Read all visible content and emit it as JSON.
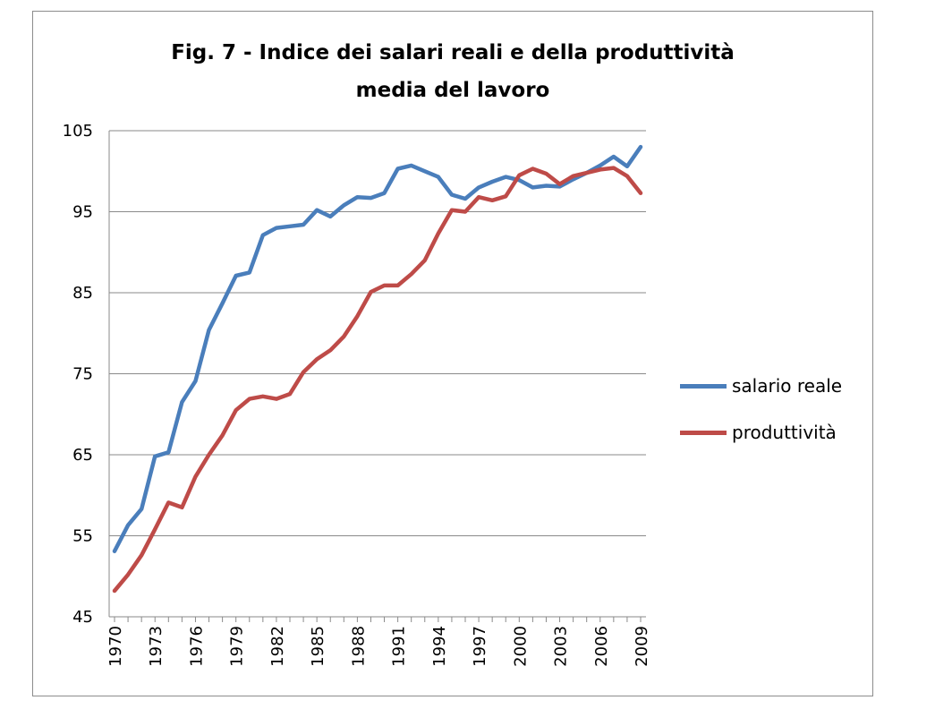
{
  "chart_data": {
    "type": "line",
    "title_lines": [
      "Fig. 7 - Indice dei salari reali e della produttività",
      "media del lavoro"
    ],
    "xlabel": "",
    "ylabel": "",
    "ylim": [
      45,
      105
    ],
    "yticks": [
      45,
      55,
      65,
      75,
      85,
      95,
      105
    ],
    "x": [
      1970,
      1971,
      1972,
      1973,
      1974,
      1975,
      1976,
      1977,
      1978,
      1979,
      1980,
      1981,
      1982,
      1983,
      1984,
      1985,
      1986,
      1987,
      1988,
      1989,
      1990,
      1991,
      1992,
      1993,
      1994,
      1995,
      1996,
      1997,
      1998,
      1999,
      2000,
      2001,
      2002,
      2003,
      2004,
      2005,
      2006,
      2007,
      2008,
      2009
    ],
    "xtick_labels": [
      "1970",
      "1973",
      "1976",
      "1979",
      "1982",
      "1985",
      "1988",
      "1991",
      "1994",
      "1997",
      "2000",
      "2003",
      "2006",
      "2009"
    ],
    "grid": "horizontal",
    "legend_position": "right",
    "series": [
      {
        "name": "salario reale",
        "color": "#4a7ebb",
        "values": [
          53.1,
          56.3,
          58.3,
          64.8,
          65.3,
          71.5,
          74.1,
          80.4,
          83.7,
          87.1,
          87.5,
          92.1,
          93.0,
          93.2,
          93.4,
          95.2,
          94.4,
          95.8,
          96.8,
          96.7,
          97.3,
          100.3,
          100.7,
          100.0,
          99.3,
          97.1,
          96.6,
          98.0,
          98.7,
          99.3,
          98.9,
          98.0,
          98.2,
          98.1,
          99.0,
          99.8,
          100.7,
          101.8,
          100.6,
          103.0
        ]
      },
      {
        "name": "produttività",
        "color": "#be4b48",
        "values": [
          48.2,
          50.2,
          52.6,
          55.8,
          59.1,
          58.5,
          62.3,
          65.0,
          67.4,
          70.5,
          71.9,
          72.2,
          71.9,
          72.5,
          75.2,
          76.8,
          77.9,
          79.6,
          82.1,
          85.1,
          85.9,
          85.9,
          87.3,
          89.0,
          92.3,
          95.2,
          95.0,
          96.8,
          96.4,
          96.9,
          99.5,
          100.3,
          99.7,
          98.4,
          99.4,
          99.8,
          100.2,
          100.4,
          99.4,
          97.3
        ]
      }
    ]
  }
}
